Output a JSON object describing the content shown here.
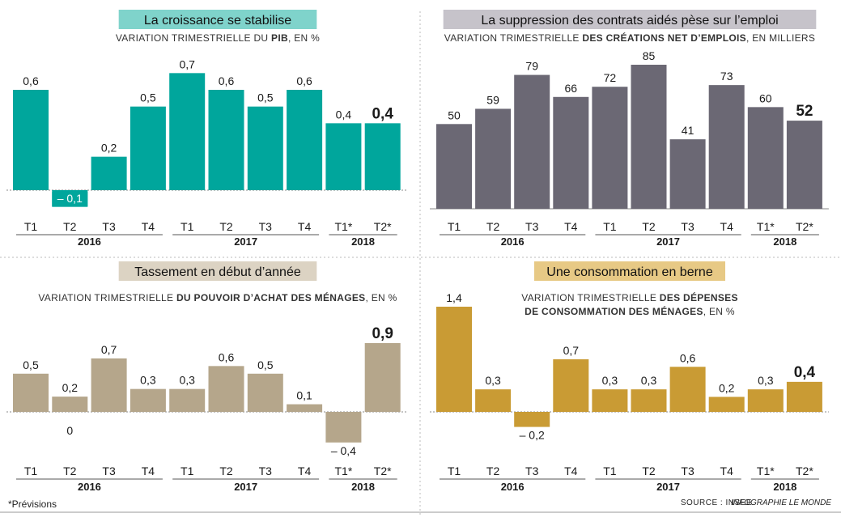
{
  "footer": {
    "note": "*Prévisions",
    "source": "SOURCE : INSEE",
    "credit": "INFOGRAPHIE LE MONDE"
  },
  "chart_data": [
    {
      "type": "bar",
      "title": "La croissance se stabilise",
      "subtitle_parts": [
        {
          "text": "VARIATION TRIMESTRIELLE DU ",
          "bold": false
        },
        {
          "text": "PIB",
          "bold": true
        },
        {
          "text": ", EN %",
          "bold": false
        }
      ],
      "categories": [
        "T1",
        "T2",
        "T3",
        "T4",
        "T1",
        "T2",
        "T3",
        "T4",
        "T1*",
        "T2*"
      ],
      "year_groups": [
        {
          "label": "2016",
          "count": 4
        },
        {
          "label": "2017",
          "count": 4
        },
        {
          "label": "2018",
          "count": 2
        }
      ],
      "values": [
        0.6,
        -0.1,
        0.2,
        0.5,
        0.7,
        0.6,
        0.5,
        0.6,
        0.4,
        0.4
      ],
      "value_labels": [
        "0,6",
        "– 0,1",
        "0,2",
        "0,5",
        "0,7",
        "0,6",
        "0,5",
        "0,6",
        "0,4",
        "0,4"
      ],
      "highlight_last": true,
      "ylim": [
        -0.15,
        0.75
      ],
      "bar_color": "#00a69c",
      "title_bg": "#7fd3cb"
    },
    {
      "type": "bar",
      "title": "La suppression des contrats aidés pèse sur l’emploi",
      "subtitle_parts": [
        {
          "text": "VARIATION TRIMESTRIELLE ",
          "bold": false
        },
        {
          "text": "DES CRÉATIONS NET D’EMPLOIS",
          "bold": true
        },
        {
          "text": ", EN MILLIERS",
          "bold": false
        }
      ],
      "categories": [
        "T1",
        "T2",
        "T3",
        "T4",
        "T1",
        "T2",
        "T3",
        "T4",
        "T1*",
        "T2*"
      ],
      "year_groups": [
        {
          "label": "2016",
          "count": 4
        },
        {
          "label": "2017",
          "count": 4
        },
        {
          "label": "2018",
          "count": 2
        }
      ],
      "values": [
        50,
        59,
        79,
        66,
        72,
        85,
        41,
        73,
        60,
        52
      ],
      "value_labels": [
        "50",
        "59",
        "79",
        "66",
        "72",
        "85",
        "41",
        "73",
        "60",
        "52"
      ],
      "highlight_last": true,
      "ylim": [
        0,
        85
      ],
      "bar_color": "#6b6874",
      "title_bg": "#c6c3ca"
    },
    {
      "type": "bar",
      "title": "Tassement en début d’année",
      "subtitle_parts": [
        {
          "text": "VARIATION TRIMESTRIELLE ",
          "bold": false
        },
        {
          "text": "DU POUVOIR D’ACHAT DES MÉNAGES",
          "bold": true
        },
        {
          "text": ", EN %",
          "bold": false
        }
      ],
      "categories": [
        "T1",
        "T2",
        "T3",
        "T4",
        "T1",
        "T2",
        "T3",
        "T4",
        "T1*",
        "T2*"
      ],
      "year_groups": [
        {
          "label": "2016",
          "count": 4
        },
        {
          "label": "2017",
          "count": 4
        },
        {
          "label": "2018",
          "count": 2
        }
      ],
      "values": [
        0.5,
        0.2,
        0.7,
        0.3,
        0.3,
        0.6,
        0.5,
        0.1,
        -0.4,
        0.9
      ],
      "value_labels": [
        "0,5",
        "0,2",
        "0,7",
        "0,3",
        "0,3",
        "0,6",
        "0,5",
        "0,1",
        "– 0,4",
        "0,9"
      ],
      "extra_labels": [
        {
          "index": 1,
          "text": "0",
          "value": -0.26
        }
      ],
      "highlight_last": true,
      "ylim": [
        -0.45,
        0.9
      ],
      "bar_color": "#b5a68b",
      "title_bg": "#dcd3c3"
    },
    {
      "type": "bar",
      "title": "Une consommation en berne",
      "subtitle_parts": [
        {
          "text": "VARIATION TRIMESTRIELLE ",
          "bold": false
        },
        {
          "text": "DES DÉPENSES",
          "bold": true
        },
        {
          "text": "\n",
          "bold": false
        },
        {
          "text": "DE CONSOMMATION DES MÉNAGES",
          "bold": true
        },
        {
          "text": ", EN %",
          "bold": false
        }
      ],
      "categories": [
        "T1",
        "T2",
        "T3",
        "T4",
        "T1",
        "T2",
        "T3",
        "T4",
        "T1*",
        "T2*"
      ],
      "year_groups": [
        {
          "label": "2016",
          "count": 4
        },
        {
          "label": "2017",
          "count": 4
        },
        {
          "label": "2018",
          "count": 2
        }
      ],
      "values": [
        1.4,
        0.3,
        -0.2,
        0.7,
        0.3,
        0.3,
        0.6,
        0.2,
        0.3,
        0.4
      ],
      "value_labels": [
        "1,4",
        "0,3",
        "– 0,2",
        "0,7",
        "0,3",
        "0,3",
        "0,6",
        "0,2",
        "0,3",
        "0,4"
      ],
      "highlight_last": true,
      "ylim": [
        -0.2,
        1.4
      ],
      "bar_color": "#c99b34",
      "title_bg": "#e7c985"
    }
  ]
}
